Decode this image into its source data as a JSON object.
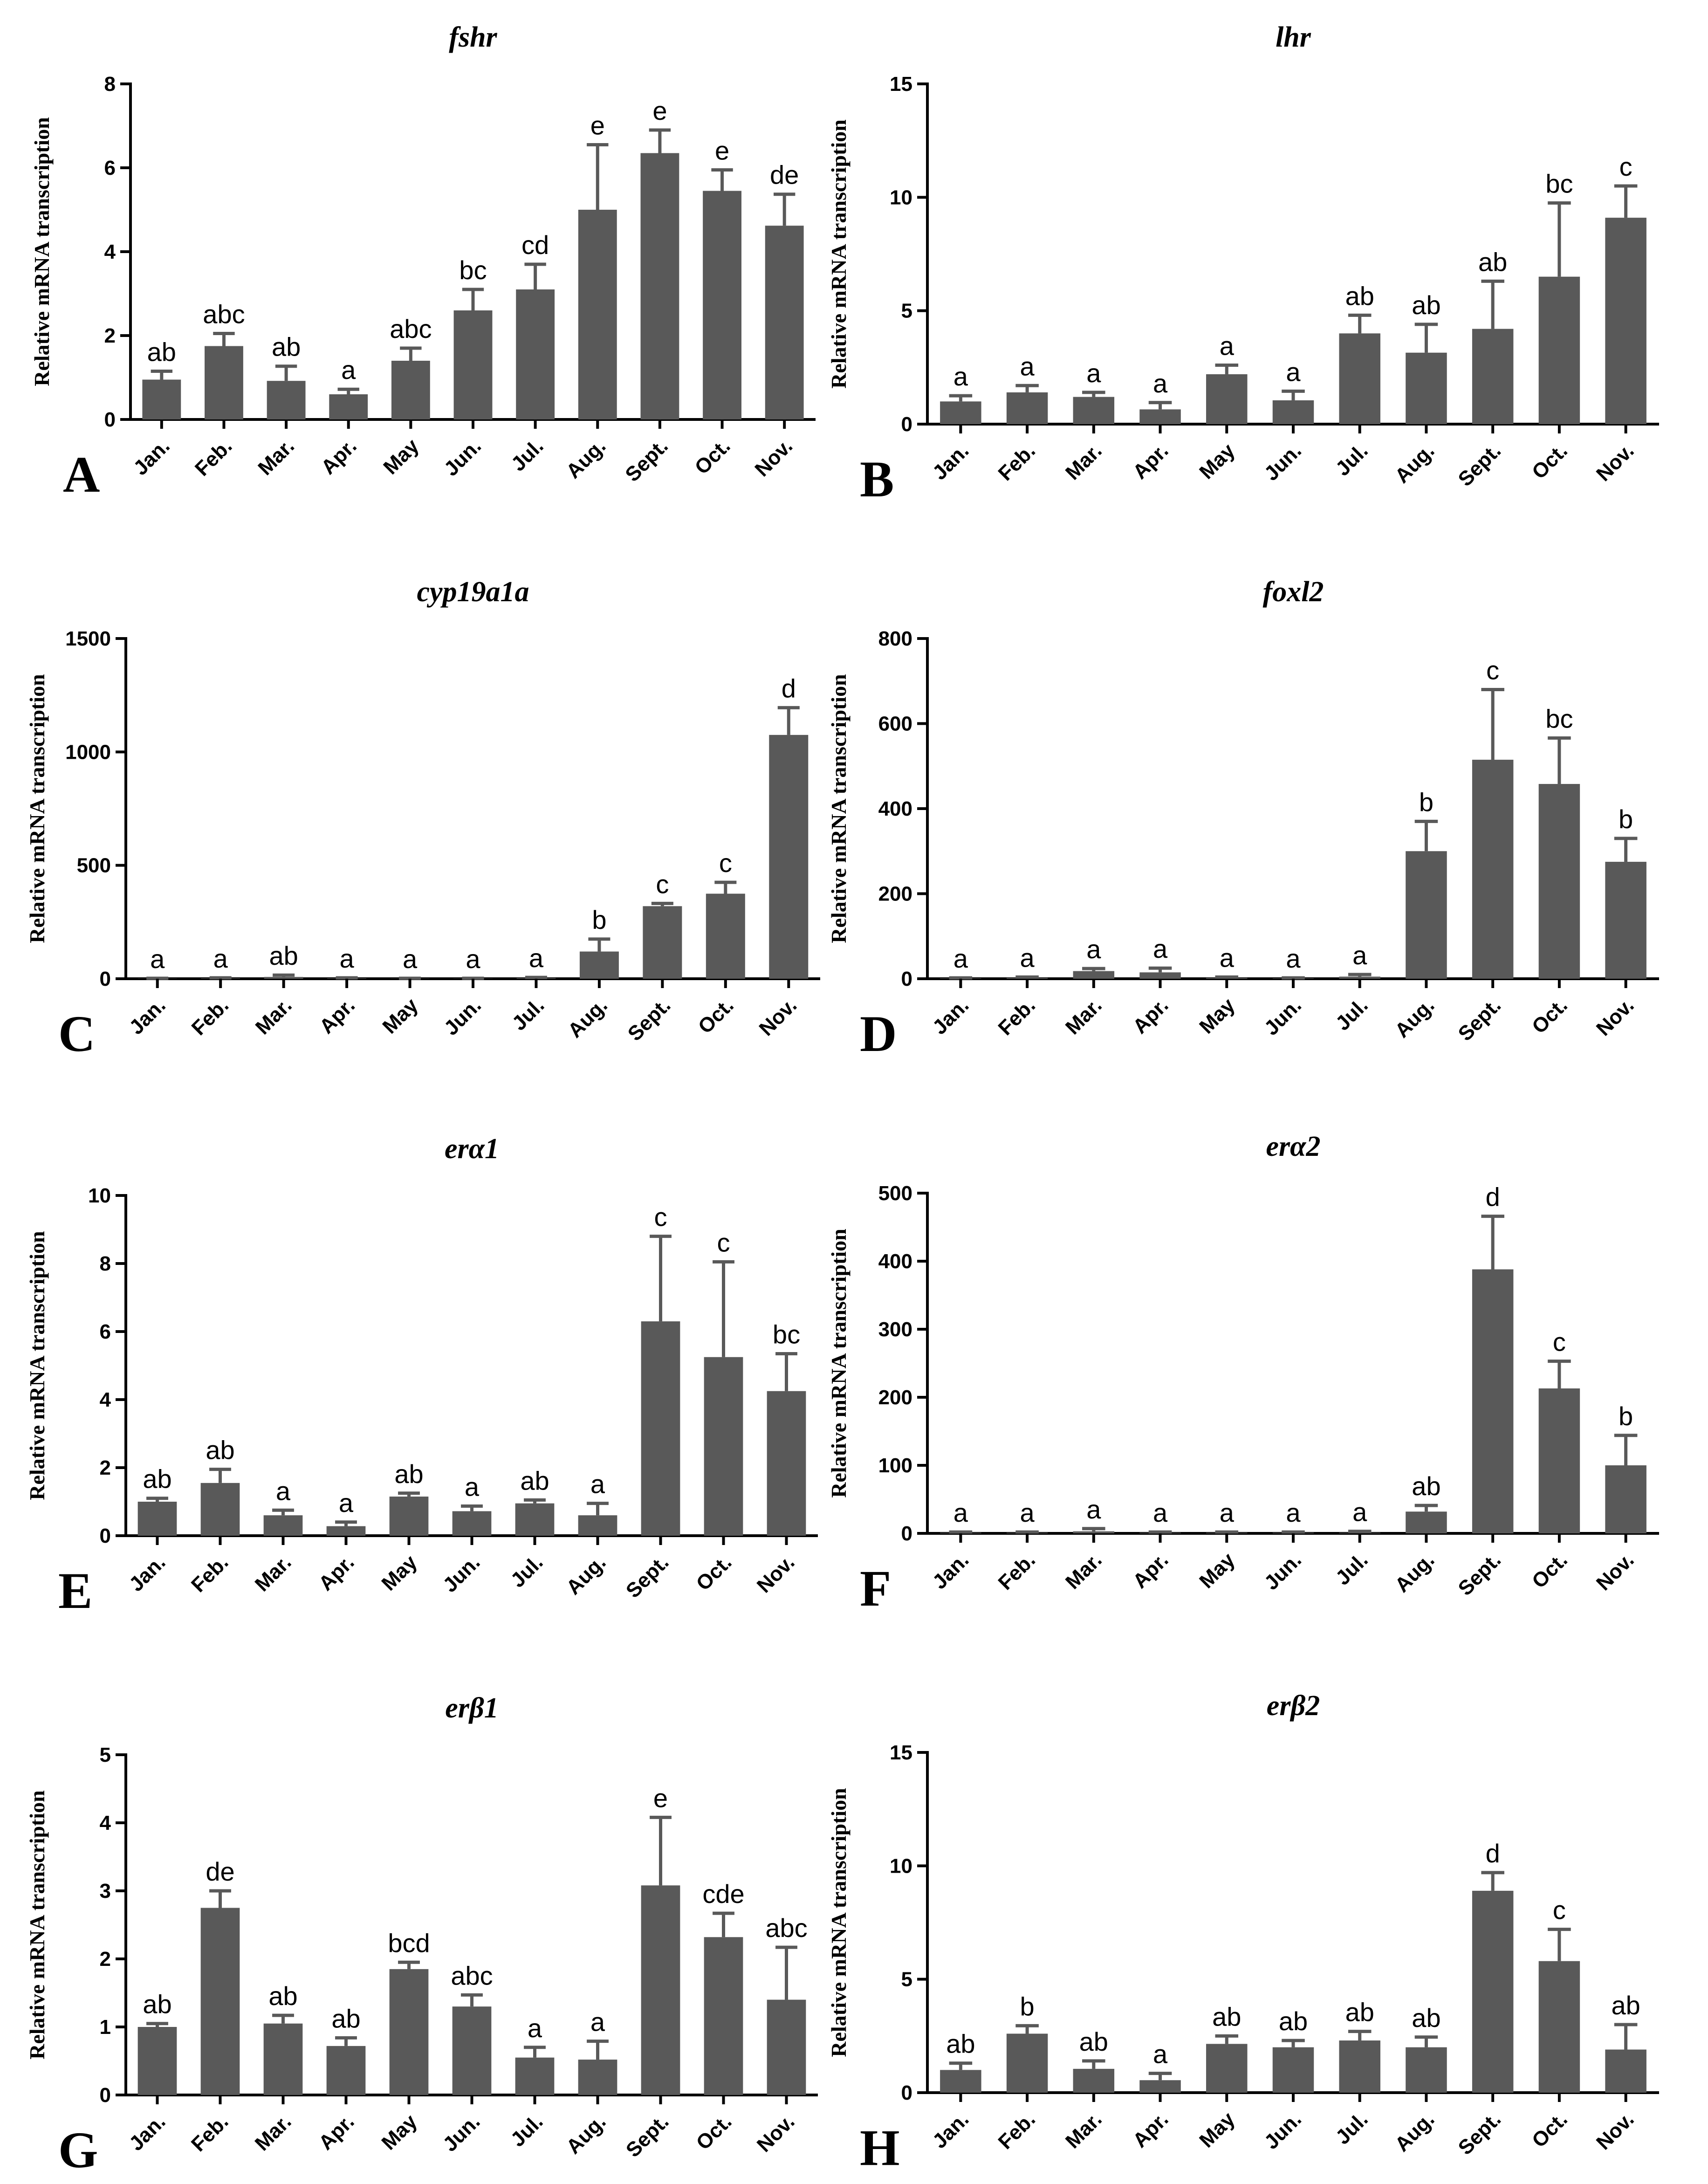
{
  "chart_data": [
    {
      "type": "bar",
      "panel": "A",
      "title": "fshr",
      "xlabel": "",
      "ylabel": "Relative mRNA transcription",
      "categories": [
        "Jan.",
        "Feb.",
        "Mar.",
        "Apr.",
        "May",
        "Jun.",
        "Jul.",
        "Aug.",
        "Sept.",
        "Oct.",
        "Nov."
      ],
      "values": [
        0.95,
        1.75,
        0.92,
        0.6,
        1.4,
        2.6,
        3.1,
        5.0,
        6.35,
        5.45,
        4.62
      ],
      "errors": [
        0.2,
        0.3,
        0.35,
        0.12,
        0.3,
        0.5,
        0.6,
        1.55,
        0.55,
        0.5,
        0.75
      ],
      "labels": [
        "ab",
        "abc",
        "ab",
        "a",
        "abc",
        "bc",
        "cd",
        "e",
        "e",
        "e",
        "de"
      ],
      "ylim": [
        0,
        8
      ],
      "yticks": [
        0,
        2,
        4,
        6,
        8
      ]
    },
    {
      "type": "bar",
      "panel": "B",
      "title": "lhr",
      "xlabel": "",
      "ylabel": "Relative mRNA transcription",
      "categories": [
        "Jan.",
        "Feb.",
        "Mar.",
        "Apr.",
        "May",
        "Jun.",
        "Jul.",
        "Aug.",
        "Sept.",
        "Oct.",
        "Nov."
      ],
      "values": [
        1.0,
        1.4,
        1.2,
        0.65,
        2.2,
        1.05,
        4.0,
        3.15,
        4.2,
        6.5,
        9.1
      ],
      "errors": [
        0.25,
        0.3,
        0.2,
        0.3,
        0.4,
        0.4,
        0.8,
        1.25,
        2.1,
        3.25,
        1.4
      ],
      "labels": [
        "a",
        "a",
        "a",
        "a",
        "a",
        "a",
        "ab",
        "ab",
        "ab",
        "bc",
        "c"
      ],
      "ylim": [
        0,
        15
      ],
      "yticks": [
        0,
        5,
        10,
        15
      ]
    },
    {
      "type": "bar",
      "panel": "C",
      "title": "cyp19a1a",
      "xlabel": "",
      "ylabel": "Relative mRNA transcription",
      "categories": [
        "Jan.",
        "Feb.",
        "Mar.",
        "Apr.",
        "May",
        "Jun.",
        "Jul.",
        "Aug.",
        "Sept.",
        "Oct.",
        "Nov."
      ],
      "values": [
        1,
        2,
        8,
        2,
        1,
        1,
        3,
        120,
        320,
        375,
        1075
      ],
      "errors": [
        1,
        2,
        8,
        2,
        1,
        1,
        3,
        55,
        12,
        50,
        120
      ],
      "labels": [
        "a",
        "a",
        "ab",
        "a",
        "a",
        "a",
        "a",
        "b",
        "c",
        "c",
        "d"
      ],
      "ylim": [
        0,
        1500
      ],
      "yticks": [
        0,
        500,
        1000,
        1500
      ]
    },
    {
      "type": "bar",
      "panel": "D",
      "title": "foxl2",
      "xlabel": "",
      "ylabel": "Relative mRNA transcription",
      "categories": [
        "Jan.",
        "Feb.",
        "Mar.",
        "Apr.",
        "May",
        "Jun.",
        "Jul.",
        "Aug.",
        "Sept.",
        "Oct.",
        "Nov."
      ],
      "values": [
        1,
        2,
        18,
        15,
        2,
        1,
        5,
        300,
        515,
        458,
        275
      ],
      "errors": [
        1,
        2,
        6,
        10,
        2,
        1,
        5,
        70,
        165,
        108,
        55
      ],
      "labels": [
        "a",
        "a",
        "a",
        "a",
        "a",
        "a",
        "a",
        "b",
        "c",
        "bc",
        "b"
      ],
      "ylim": [
        0,
        800
      ],
      "yticks": [
        0,
        200,
        400,
        600,
        800
      ]
    },
    {
      "type": "bar",
      "panel": "E",
      "title": "erα1",
      "xlabel": "",
      "ylabel": "Relative mRNA transcription",
      "categories": [
        "Jan.",
        "Feb.",
        "Mar.",
        "Apr.",
        "May",
        "Jun.",
        "Jul.",
        "Aug.",
        "Sept.",
        "Oct.",
        "Nov."
      ],
      "values": [
        1.0,
        1.55,
        0.6,
        0.28,
        1.15,
        0.72,
        0.95,
        0.6,
        6.3,
        5.25,
        4.25
      ],
      "errors": [
        0.1,
        0.4,
        0.15,
        0.12,
        0.1,
        0.15,
        0.1,
        0.35,
        2.5,
        2.8,
        1.1
      ],
      "labels": [
        "ab",
        "ab",
        "a",
        "a",
        "ab",
        "a",
        "ab",
        "a",
        "c",
        "c",
        "bc"
      ],
      "ylim": [
        0,
        10
      ],
      "yticks": [
        0,
        2,
        4,
        6,
        8,
        10
      ]
    },
    {
      "type": "bar",
      "panel": "F",
      "title": "erα2",
      "xlabel": "",
      "ylabel": "Relative mRNA transcription",
      "categories": [
        "Jan.",
        "Feb.",
        "Mar.",
        "Apr.",
        "May",
        "Jun.",
        "Jul.",
        "Aug.",
        "Sept.",
        "Oct.",
        "Nov."
      ],
      "values": [
        1,
        1,
        3,
        1,
        1,
        1,
        1,
        32,
        388,
        213,
        100
      ],
      "errors": [
        1,
        1,
        4,
        1,
        1,
        1,
        2,
        9,
        78,
        40,
        44
      ],
      "labels": [
        "a",
        "a",
        "a",
        "a",
        "a",
        "a",
        "a",
        "ab",
        "d",
        "c",
        "b"
      ],
      "ylim": [
        0,
        500
      ],
      "yticks": [
        0,
        100,
        200,
        300,
        400,
        500
      ]
    },
    {
      "type": "bar",
      "panel": "G",
      "title": "erβ1",
      "xlabel": "",
      "ylabel": "Relative mRNA transcription",
      "categories": [
        "Jan.",
        "Feb.",
        "Mar.",
        "Apr.",
        "May",
        "Jun.",
        "Jul.",
        "Aug.",
        "Sept.",
        "Oct.",
        "Nov."
      ],
      "values": [
        1.0,
        2.75,
        1.05,
        0.72,
        1.85,
        1.3,
        0.55,
        0.52,
        3.08,
        2.32,
        1.4
      ],
      "errors": [
        0.05,
        0.25,
        0.12,
        0.12,
        0.1,
        0.17,
        0.15,
        0.27,
        1.0,
        0.35,
        0.77
      ],
      "labels": [
        "ab",
        "de",
        "ab",
        "ab",
        "bcd",
        "abc",
        "a",
        "a",
        "e",
        "cde",
        "abc"
      ],
      "ylim": [
        0,
        5
      ],
      "yticks": [
        0,
        1,
        2,
        3,
        4,
        5
      ]
    },
    {
      "type": "bar",
      "panel": "H",
      "title": "erβ2",
      "xlabel": "",
      "ylabel": "Relative mRNA transcription",
      "categories": [
        "Jan.",
        "Feb.",
        "Mar.",
        "Apr.",
        "May",
        "Jun.",
        "Jul.",
        "Aug.",
        "Sept.",
        "Oct.",
        "Nov."
      ],
      "values": [
        1.0,
        2.6,
        1.05,
        0.55,
        2.15,
        2.0,
        2.3,
        2.0,
        8.9,
        5.8,
        1.9
      ],
      "errors": [
        0.3,
        0.35,
        0.35,
        0.3,
        0.35,
        0.3,
        0.4,
        0.45,
        0.8,
        1.4,
        1.1
      ],
      "labels": [
        "ab",
        "b",
        "ab",
        "a",
        "ab",
        "ab",
        "ab",
        "ab",
        "d",
        "c",
        "ab"
      ],
      "ylim": [
        0,
        15
      ],
      "yticks": [
        0,
        5,
        10,
        15
      ]
    }
  ],
  "colors": {
    "bar": "#595959",
    "axis": "#000000"
  }
}
